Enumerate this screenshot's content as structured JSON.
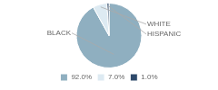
{
  "chart_data": {
    "type": "pie",
    "categories": [
      "BLACK",
      "WHITE",
      "HISPANIC"
    ],
    "values": [
      92.0,
      7.0,
      1.0
    ],
    "value_labels": [
      "92.0%",
      "7.0%",
      "1.0%"
    ],
    "colors": [
      "#8fafc0",
      "#ddeaf2",
      "#2e4a6b"
    ],
    "legend": "bottom"
  }
}
